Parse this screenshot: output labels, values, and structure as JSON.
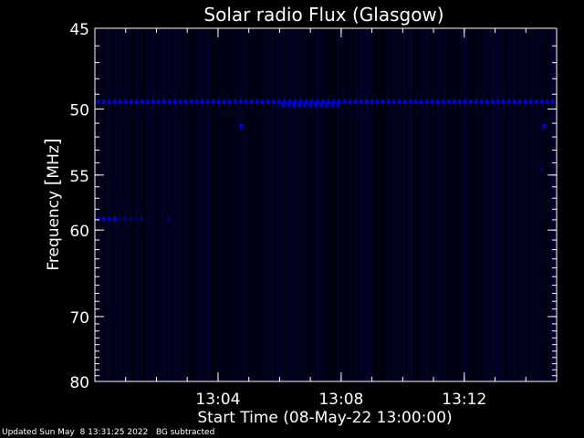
{
  "chart_data": {
    "type": "heatmap",
    "title": "Solar radio Flux (Glasgow)",
    "xlabel": "Start Time (08-May-22 13:00:00)",
    "ylabel_parts": [
      "Frequency ",
      "[",
      "MHz",
      "]"
    ],
    "x_unit": "minutes after 13:00",
    "xlim": [
      0,
      15
    ],
    "x_ticks": [
      {
        "value": 4,
        "label": "13:04"
      },
      {
        "value": 8,
        "label": "13:08"
      },
      {
        "value": 12,
        "label": "13:12"
      }
    ],
    "y_unit": "MHz",
    "ylim": [
      45,
      80
    ],
    "y_ticks": [
      {
        "value": 45,
        "label": "45"
      },
      {
        "value": 50,
        "label": "50"
      },
      {
        "value": 55,
        "label": "55"
      },
      {
        "value": 60,
        "label": "60"
      },
      {
        "value": 70,
        "label": "70"
      },
      {
        "value": 80,
        "label": "80"
      }
    ],
    "colormap": [
      "#000000",
      "#0000ff"
    ],
    "features": [
      {
        "kind": "band",
        "freq_mhz": 49.5,
        "x_start": 0,
        "x_end": 15,
        "intensity": 0.85
      },
      {
        "kind": "band",
        "freq_mhz": 49.7,
        "x_start": 6.0,
        "x_end": 7.9,
        "intensity": 0.9
      },
      {
        "kind": "band",
        "freq_mhz": 58.9,
        "x_start": 0,
        "x_end": 0.7,
        "intensity": 0.8
      },
      {
        "kind": "band",
        "freq_mhz": 58.9,
        "x_start": 0.7,
        "x_end": 1.6,
        "intensity": 0.45
      },
      {
        "kind": "spot",
        "freq_mhz": 58.9,
        "x": 2.4,
        "intensity": 0.35
      },
      {
        "kind": "spot",
        "freq_mhz": 51.2,
        "x": 4.75,
        "intensity": 0.8
      },
      {
        "kind": "spot",
        "freq_mhz": 51.2,
        "x": 14.6,
        "intensity": 0.8
      },
      {
        "kind": "spot",
        "freq_mhz": 54.5,
        "x": 14.5,
        "intensity": 0.3
      }
    ]
  },
  "footer": {
    "updated": "Updated Sun May  8 13:31:25 2022",
    "note": "BG subtracted"
  },
  "colors": {
    "background": "#000000",
    "axes": "#ffffff",
    "signal": "#0000ff"
  }
}
